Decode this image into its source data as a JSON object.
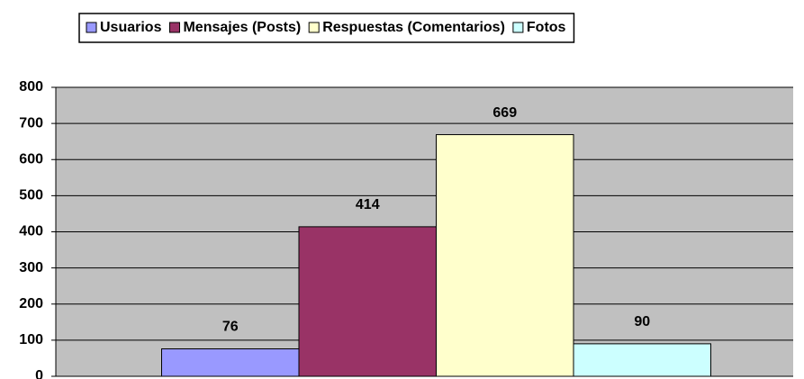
{
  "chart_data": {
    "type": "bar",
    "categories": [
      null
    ],
    "series": [
      {
        "name": "Usuarios",
        "color": "#9999ff",
        "values": [
          76
        ]
      },
      {
        "name": "Mensajes (Posts)",
        "color": "#993366",
        "values": [
          414
        ]
      },
      {
        "name": "Respuestas (Comentarios)",
        "color": "#ffffcc",
        "values": [
          669
        ]
      },
      {
        "name": "Fotos",
        "color": "#ccffff",
        "values": [
          90
        ]
      }
    ],
    "ylim": [
      0,
      800
    ],
    "yticks": [
      0,
      100,
      200,
      300,
      400,
      500,
      600,
      700,
      800
    ],
    "grid": true,
    "legend": "top",
    "plot_background": "#c0c0c0"
  }
}
